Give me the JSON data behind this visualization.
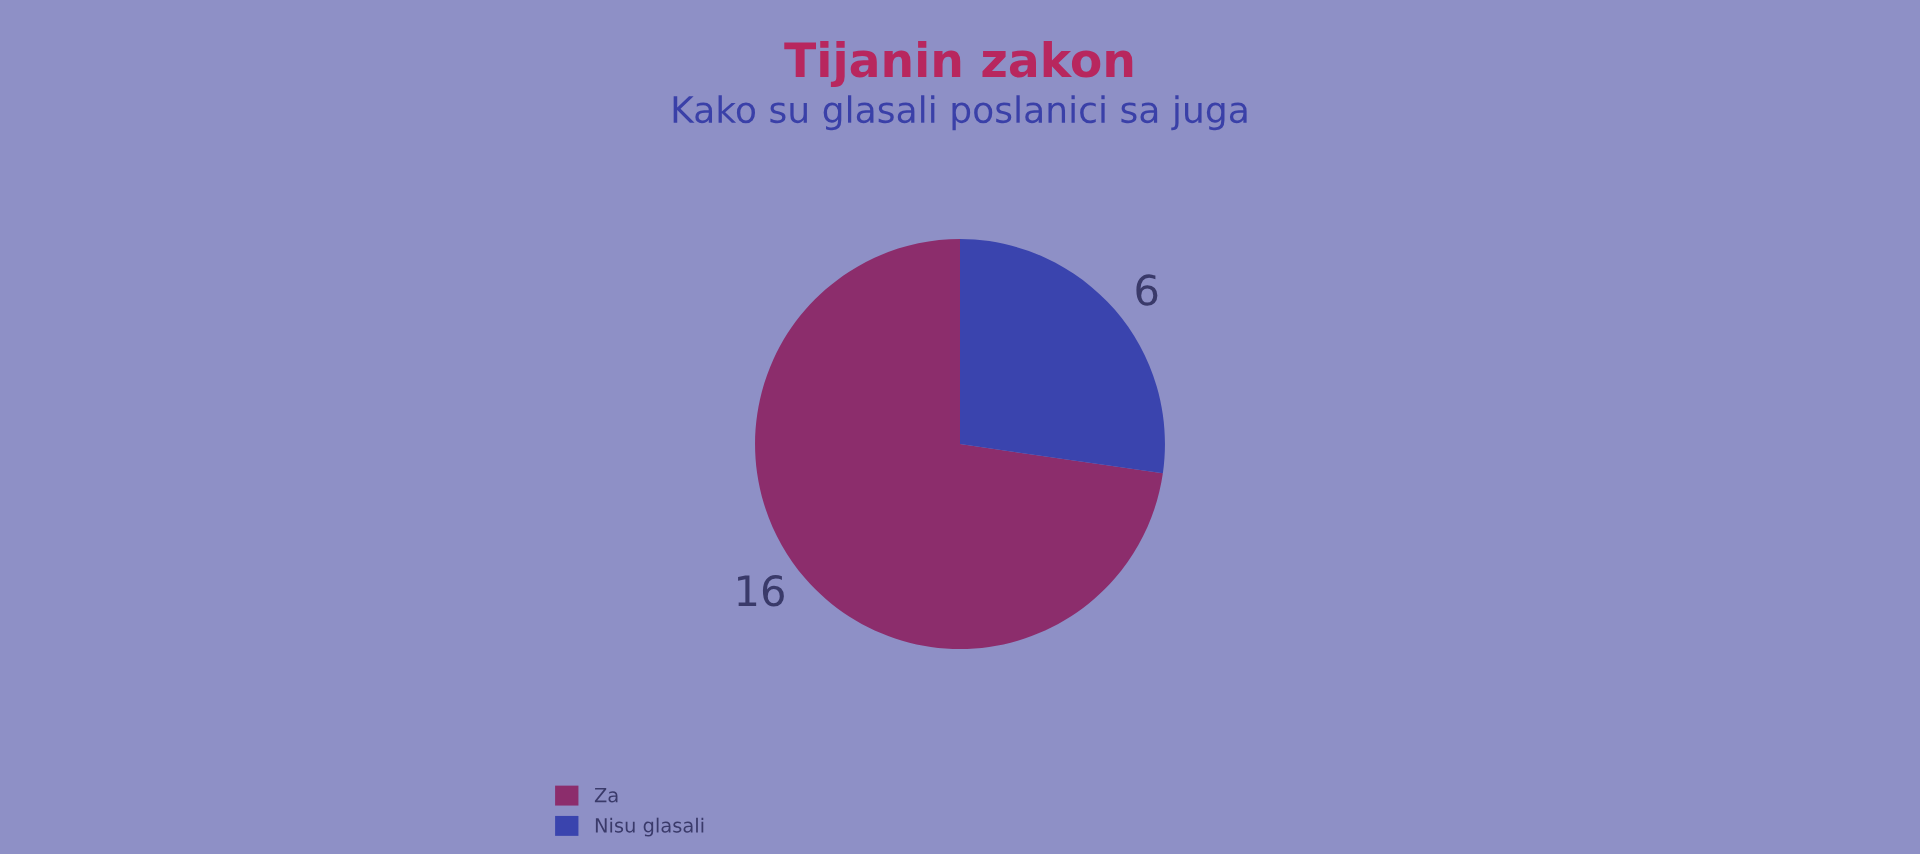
{
  "chart_data": {
    "type": "pie",
    "title": "Tijanin zakon",
    "subtitle": "Kako su glasali poslanici sa juga",
    "categories": [
      "Za",
      "Nisu glasali"
    ],
    "values": [
      16,
      6
    ],
    "colors": [
      "#8c2d6c",
      "#3a44ae"
    ],
    "data_labels": true,
    "legend": "bottom"
  }
}
